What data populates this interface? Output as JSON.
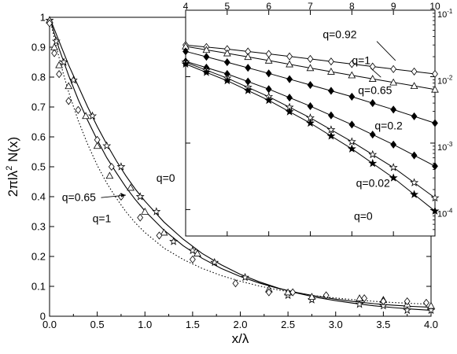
{
  "chart_data": [
    {
      "panel": "main",
      "type": "line",
      "xlabel": "x/λ",
      "ylabel_main": "2πlλ",
      "ylabel_sup": "2",
      "ylabel_tail": " N(x)",
      "xlim": [
        0,
        4
      ],
      "ylim": [
        0,
        1
      ],
      "xticks": [
        "0.0",
        "0.5",
        "1.0",
        "1.5",
        "2.0",
        "2.5",
        "3.0",
        "3.5",
        "4.0"
      ],
      "yticks": [
        "0",
        "0.1",
        "0.2",
        "0.3",
        "0.4",
        "0.5",
        "0.6",
        "0.7",
        "0.8",
        "0.9",
        "1"
      ],
      "curve_labels": [
        "q=0",
        "q=0.65",
        "q=1"
      ],
      "series": [
        {
          "name": "q=0",
          "line": "solid",
          "marker": "star",
          "x": [
            0.0,
            0.05,
            0.1,
            0.15,
            0.2,
            0.3,
            0.4,
            0.5,
            0.6,
            0.7,
            0.8,
            0.9,
            1.0,
            1.2,
            1.4,
            1.6,
            1.8,
            2.0,
            2.2,
            2.4,
            2.6,
            2.8,
            3.0,
            3.2,
            3.4,
            3.6,
            3.8,
            4.0
          ],
          "y": [
            1.0,
            0.96,
            0.92,
            0.88,
            0.84,
            0.77,
            0.7,
            0.635,
            0.575,
            0.52,
            0.47,
            0.425,
            0.385,
            0.315,
            0.258,
            0.21,
            0.172,
            0.14,
            0.115,
            0.094,
            0.077,
            0.063,
            0.052,
            0.043,
            0.035,
            0.029,
            0.024,
            0.02
          ]
        },
        {
          "name": "q=0.65",
          "line": "solid",
          "marker": "triangle",
          "x": [
            0.0,
            0.05,
            0.1,
            0.15,
            0.2,
            0.3,
            0.4,
            0.5,
            0.6,
            0.7,
            0.8,
            0.9,
            1.0,
            1.2,
            1.4,
            1.6,
            1.8,
            2.0,
            2.2,
            2.4,
            2.6,
            2.8,
            3.0,
            3.2,
            3.4,
            3.6,
            3.8,
            4.0
          ],
          "y": [
            1.0,
            0.945,
            0.895,
            0.85,
            0.805,
            0.725,
            0.655,
            0.59,
            0.53,
            0.48,
            0.432,
            0.39,
            0.352,
            0.288,
            0.236,
            0.194,
            0.16,
            0.133,
            0.111,
            0.093,
            0.079,
            0.067,
            0.057,
            0.049,
            0.042,
            0.037,
            0.033,
            0.03
          ]
        },
        {
          "name": "q=1",
          "line": "dotted",
          "marker": "diamond",
          "x": [
            0.0,
            0.05,
            0.1,
            0.15,
            0.2,
            0.3,
            0.4,
            0.5,
            0.6,
            0.7,
            0.8,
            0.9,
            1.0,
            1.2,
            1.4,
            1.6,
            1.8,
            2.0,
            2.2,
            2.4,
            2.6,
            2.8,
            3.0,
            3.2,
            3.4,
            3.6,
            3.8,
            4.0
          ],
          "y": [
            1.0,
            0.93,
            0.865,
            0.805,
            0.75,
            0.655,
            0.575,
            0.505,
            0.445,
            0.395,
            0.35,
            0.312,
            0.28,
            0.228,
            0.19,
            0.16,
            0.136,
            0.117,
            0.101,
            0.088,
            0.077,
            0.068,
            0.061,
            0.055,
            0.05,
            0.046,
            0.043,
            0.04
          ]
        }
      ],
      "markers": [
        {
          "series": "q=0",
          "marker": "star",
          "x": [
            0.0,
            0.07,
            0.15,
            0.25,
            0.45,
            0.6,
            0.75,
            0.95,
            1.12,
            1.3,
            1.5,
            1.73,
            2.05,
            2.5,
            2.75,
            3.25,
            3.5,
            3.75,
            4.0
          ],
          "y": [
            0.99,
            0.92,
            0.85,
            0.79,
            0.67,
            0.57,
            0.5,
            0.4,
            0.35,
            0.25,
            0.22,
            0.18,
            0.13,
            0.07,
            0.055,
            0.04,
            0.035,
            0.02,
            0.02
          ]
        },
        {
          "series": "q=0.65",
          "marker": "triangle",
          "x": [
            0.0,
            0.05,
            0.1,
            0.2,
            0.38,
            0.5,
            0.63,
            0.85,
            1.0,
            1.2,
            1.55,
            2.3,
            2.5,
            2.75,
            3.25,
            3.5,
            3.75,
            4.0
          ],
          "y": [
            0.99,
            0.9,
            0.84,
            0.77,
            0.67,
            0.57,
            0.47,
            0.43,
            0.35,
            0.28,
            0.21,
            0.09,
            0.08,
            0.065,
            0.06,
            0.055,
            0.04,
            0.035
          ]
        },
        {
          "series": "q=1",
          "marker": "diamond",
          "x": [
            0.0,
            0.05,
            0.1,
            0.2,
            0.3,
            0.5,
            0.65,
            0.75,
            0.95,
            1.15,
            1.5,
            1.95,
            2.3,
            2.55,
            2.9,
            3.3,
            3.5,
            3.75,
            3.95
          ],
          "y": [
            0.98,
            0.88,
            0.81,
            0.72,
            0.69,
            0.59,
            0.5,
            0.4,
            0.33,
            0.27,
            0.19,
            0.11,
            0.08,
            0.08,
            0.07,
            0.06,
            0.05,
            0.05,
            0.045
          ]
        }
      ]
    },
    {
      "panel": "inset",
      "type": "line",
      "xscale": "linear",
      "yscale": "log",
      "xlim": [
        4,
        10
      ],
      "ylim": [
        4e-05,
        0.1
      ],
      "xticks": [
        "4",
        "5",
        "6",
        "7",
        "8",
        "9",
        "10"
      ],
      "y_tick_values": [
        0.1,
        0.01,
        0.001,
        0.0001
      ],
      "y_tick_exponents": [
        "-1",
        "-2",
        "-3",
        "-4"
      ],
      "y_tick_base": "10",
      "series": [
        {
          "name": "q=0.92",
          "marker": "diamond-open",
          "x": [
            4,
            5,
            6,
            7,
            8,
            9,
            10
          ],
          "y": [
            0.03,
            0.026,
            0.022,
            0.0185,
            0.0155,
            0.013,
            0.011
          ]
        },
        {
          "name": "q=1",
          "marker": "triangle-open",
          "x": [
            4,
            5,
            6,
            7,
            8,
            9,
            10
          ],
          "y": [
            0.0285,
            0.0225,
            0.0175,
            0.0135,
            0.0105,
            0.0082,
            0.0064
          ]
        },
        {
          "name": "q=0.65",
          "marker": "diamond-filled",
          "x": [
            4,
            5,
            6,
            7,
            8,
            9,
            10
          ],
          "y": [
            0.024,
            0.0165,
            0.0112,
            0.0075,
            0.005,
            0.0032,
            0.002
          ]
        },
        {
          "name": "q=0.2",
          "marker": "diamond-filled",
          "x": [
            4,
            5,
            6,
            7,
            8,
            9,
            10
          ],
          "y": [
            0.017,
            0.011,
            0.0065,
            0.0036,
            0.0019,
            0.00095,
            0.00045
          ]
        },
        {
          "name": "q=0.02",
          "marker": "star-open",
          "x": [
            4,
            5,
            6,
            7,
            8,
            9,
            10
          ],
          "y": [
            0.0165,
            0.0095,
            0.005,
            0.0024,
            0.00105,
            0.00043,
            0.00015
          ]
        },
        {
          "name": "q=0",
          "marker": "star-filled",
          "x": [
            4,
            5,
            6,
            7,
            8,
            9,
            10
          ],
          "y": [
            0.0155,
            0.0087,
            0.0044,
            0.002,
            0.00082,
            0.0003,
            9.5e-05
          ]
        }
      ],
      "curve_labels": [
        "q=0.92",
        "q=1",
        "q=0.65",
        "q=0.2",
        "q=0.02",
        "q=0"
      ]
    }
  ]
}
